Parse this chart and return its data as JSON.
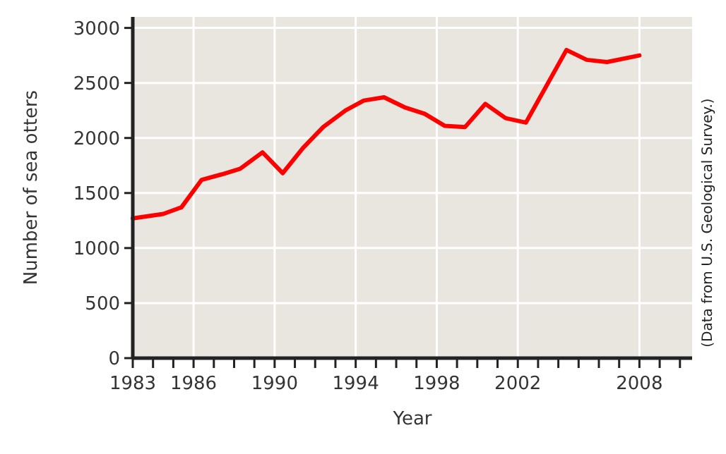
{
  "chart_data": {
    "type": "line",
    "xlabel": "Year",
    "ylabel": "Number of sea otters",
    "annotations": [
      "(Data from U.S. Geological Survey.)"
    ],
    "x": [
      1983,
      1984.5,
      1985.4,
      1986.4,
      1987.4,
      1988.3,
      1989.4,
      1990.4,
      1991.4,
      1992.4,
      1993.5,
      1994.4,
      1995.4,
      1996.4,
      1997.4,
      1998.4,
      1999.4,
      2000.4,
      2001.4,
      2002.4,
      2004.4,
      2005.4,
      2006.4,
      2008
    ],
    "series": [
      {
        "color": "#ff0000",
        "values": [
          1270,
          1310,
          1370,
          1620,
          1670,
          1720,
          1870,
          1680,
          1910,
          2100,
          2250,
          2340,
          2370,
          2280,
          2220,
          2110,
          2100,
          2310,
          2180,
          2140,
          2800,
          2710,
          2690,
          2750
        ]
      }
    ],
    "xlim": [
      1983,
      2010.6
    ],
    "xticks": [
      1983,
      {
        "value": 1984,
        "label": null
      },
      {
        "value": 1985,
        "label": null
      },
      1986,
      {
        "value": 1987,
        "label": null
      },
      {
        "value": 1988,
        "label": null
      },
      {
        "value": 1989,
        "label": null
      },
      1990,
      {
        "value": 1991,
        "label": null
      },
      {
        "value": 1992,
        "label": null
      },
      {
        "value": 1993,
        "label": null
      },
      1994,
      {
        "value": 1995,
        "label": null
      },
      {
        "value": 1996,
        "label": null
      },
      {
        "value": 1997,
        "label": null
      },
      1998,
      {
        "value": 1999,
        "label": null
      },
      {
        "value": 2000,
        "label": null
      },
      {
        "value": 2001,
        "label": null
      },
      2002,
      {
        "value": 2003,
        "label": null
      },
      {
        "value": 2004,
        "label": null
      },
      {
        "value": 2005,
        "label": null
      },
      {
        "value": 2006,
        "label": null
      },
      {
        "value": 2007,
        "label": null
      },
      2008,
      {
        "value": 2009,
        "label": null
      },
      {
        "value": 2010,
        "label": null
      }
    ],
    "ylim": [
      0,
      3100
    ],
    "yticks": [
      0,
      500,
      1000,
      1500,
      2000,
      2500,
      3000
    ],
    "grid": true,
    "marker": "none",
    "line_style": "solid"
  }
}
